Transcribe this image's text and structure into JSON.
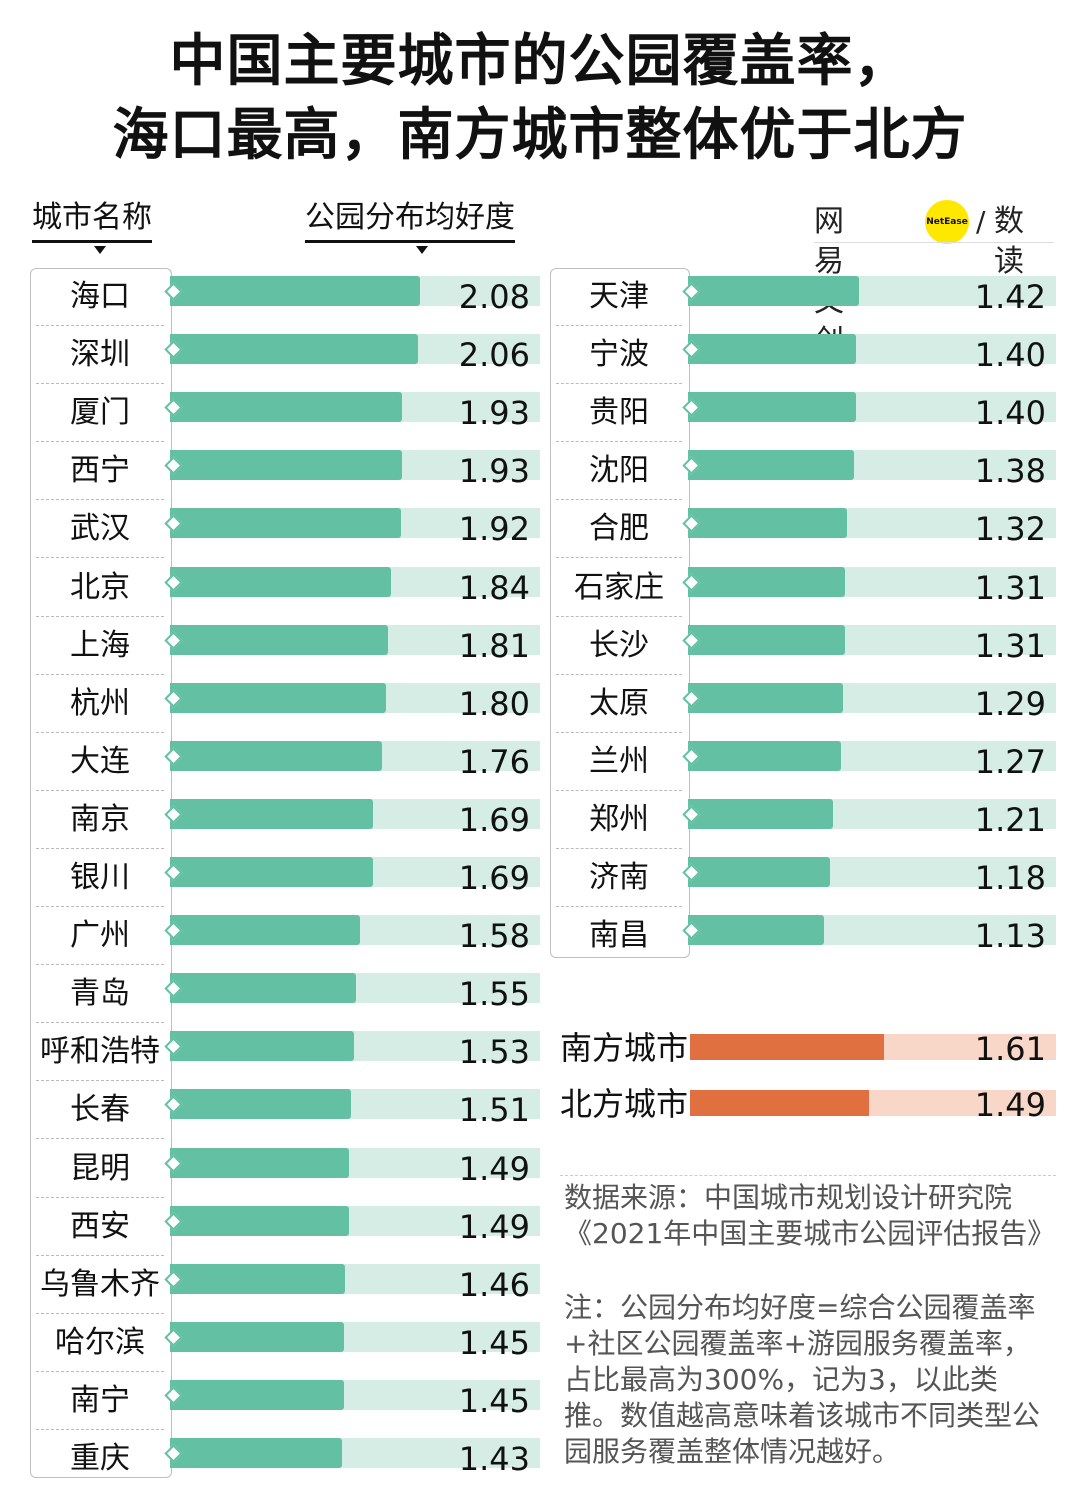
{
  "title": {
    "line1": "中国主要城市的公园覆盖率，",
    "line2": "海口最高，南方城市整体优于北方"
  },
  "headers": {
    "city": "城市名称",
    "metric": "公园分布均好度"
  },
  "logo": {
    "cn": "网易文创",
    "dot": "NetEase",
    "slash": "/",
    "sub": "数读"
  },
  "colors": {
    "bar": "#64c0a3",
    "track": "#d5ede5",
    "summary_bar": "#e07040",
    "summary_track": "#f8d7c8"
  },
  "chart_data": {
    "type": "bar",
    "orientation": "horizontal",
    "xlim": [
      0,
      3
    ],
    "groups": [
      {
        "categories": [
          "海口",
          "深圳",
          "厦门",
          "西宁",
          "武汉",
          "北京",
          "上海",
          "杭州",
          "大连",
          "南京",
          "银川",
          "广州",
          "青岛",
          "呼和浩特",
          "长春",
          "昆明",
          "西安",
          "乌鲁木齐",
          "哈尔滨",
          "南宁",
          "重庆"
        ],
        "values": [
          2.08,
          2.06,
          1.93,
          1.93,
          1.92,
          1.84,
          1.81,
          1.8,
          1.76,
          1.69,
          1.69,
          1.58,
          1.55,
          1.53,
          1.51,
          1.49,
          1.49,
          1.46,
          1.45,
          1.45,
          1.43
        ],
        "labels": [
          "2.08",
          "2.06",
          "1.93",
          "1.93",
          "1.92",
          "1.84",
          "1.81",
          "1.80",
          "1.76",
          "1.69",
          "1.69",
          "1.58",
          "1.55",
          "1.53",
          "1.51",
          "1.49",
          "1.49",
          "1.46",
          "1.45",
          "1.45",
          "1.43"
        ]
      },
      {
        "categories": [
          "天津",
          "宁波",
          "贵阳",
          "沈阳",
          "合肥",
          "石家庄",
          "长沙",
          "太原",
          "兰州",
          "郑州",
          "济南",
          "南昌"
        ],
        "values": [
          1.42,
          1.4,
          1.4,
          1.38,
          1.32,
          1.31,
          1.31,
          1.29,
          1.27,
          1.21,
          1.18,
          1.13
        ],
        "labels": [
          "1.42",
          "1.40",
          "1.40",
          "1.38",
          "1.32",
          "1.31",
          "1.31",
          "1.29",
          "1.27",
          "1.21",
          "1.18",
          "1.13"
        ]
      }
    ],
    "summary": {
      "categories": [
        "南方城市",
        "北方城市"
      ],
      "values": [
        1.61,
        1.49
      ],
      "labels": [
        "1.61",
        "1.49"
      ]
    }
  },
  "notes": {
    "source": "数据来源：中国城市规划设计研究院《2021年中国主要城市公园评估报告》",
    "footnote": "注：公园分布均好度=综合公园覆盖率+社区公园覆盖率+游园服务覆盖率，占比最高为300%，记为3，以此类推。数值越高意味着该城市不同类型公园服务覆盖整体情况越好。"
  }
}
